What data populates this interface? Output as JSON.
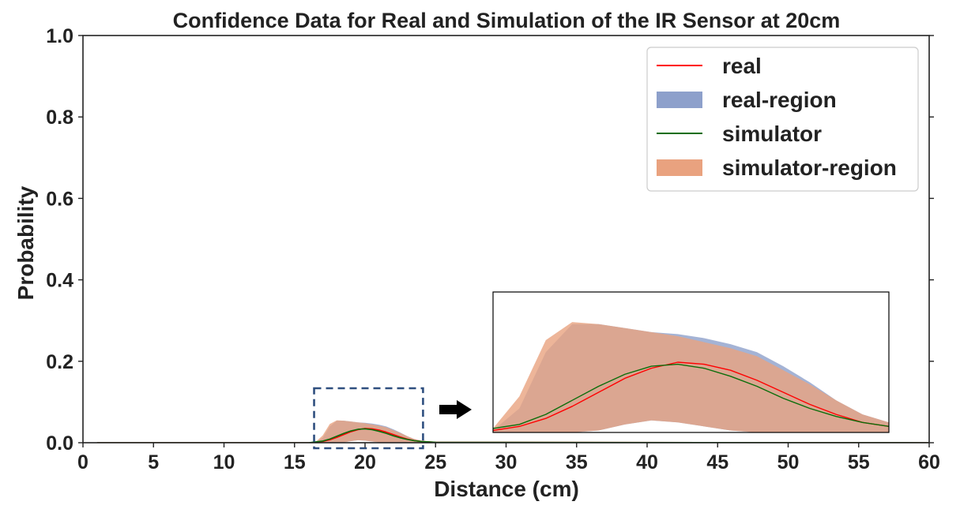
{
  "chart_data": {
    "type": "line",
    "title": "Confidence Data for Real and Simulation of the IR Sensor at 20cm",
    "xlabel": "Distance (cm)",
    "ylabel": "Probability",
    "xlim": [
      0,
      60
    ],
    "ylim": [
      0,
      1.0
    ],
    "x_ticks": [
      0,
      5,
      10,
      15,
      20,
      25,
      30,
      35,
      40,
      45,
      50,
      55,
      60
    ],
    "y_ticks": [
      0.0,
      0.2,
      0.4,
      0.6,
      0.8,
      1.0
    ],
    "x_tick_labels": [
      "0",
      "5",
      "10",
      "15",
      "20",
      "25",
      "30",
      "35",
      "40",
      "45",
      "50",
      "55",
      "60"
    ],
    "y_tick_labels": [
      "0.0",
      "0.2",
      "0.4",
      "0.6",
      "0.8",
      "1.0"
    ],
    "grid": false,
    "legend_position": "top-right",
    "legend": [
      {
        "label": "real",
        "kind": "line",
        "color": "#ff0000"
      },
      {
        "label": "real-region",
        "kind": "patch",
        "color": "#8da0cb"
      },
      {
        "label": "simulator",
        "kind": "line",
        "color": "#0a6e0a"
      },
      {
        "label": "simulator-region",
        "kind": "patch",
        "color": "#e9a27f"
      }
    ],
    "series": [
      {
        "name": "real",
        "kind": "line",
        "color": "#ff0000",
        "x": [
          1,
          16,
          16.5,
          17,
          17.5,
          18,
          18.5,
          19,
          19.5,
          20,
          20.5,
          21,
          21.5,
          22,
          22.5,
          23,
          23.5,
          24,
          25,
          60
        ],
        "y": [
          0,
          0,
          0.001,
          0.003,
          0.007,
          0.013,
          0.02,
          0.027,
          0.032,
          0.035,
          0.034,
          0.031,
          0.026,
          0.02,
          0.014,
          0.009,
          0.005,
          0.003,
          0.001,
          0
        ]
      },
      {
        "name": "simulator",
        "kind": "line",
        "color": "#0a6e0a",
        "x": [
          1,
          16,
          16.5,
          17,
          17.5,
          18,
          18.5,
          19,
          19.5,
          20,
          20.5,
          21,
          21.5,
          22,
          22.5,
          23,
          23.5,
          24,
          25,
          60
        ],
        "y": [
          0,
          0,
          0.002,
          0.004,
          0.009,
          0.016,
          0.023,
          0.029,
          0.033,
          0.034,
          0.032,
          0.028,
          0.023,
          0.017,
          0.012,
          0.008,
          0.005,
          0.003,
          0.001,
          0
        ]
      },
      {
        "name": "real-region",
        "kind": "band",
        "color": "#8da0cb",
        "x": [
          16.5,
          17,
          17.5,
          18,
          18.5,
          19,
          19.5,
          20,
          20.5,
          21,
          21.5,
          22,
          22.5,
          23,
          23.5,
          24,
          25
        ],
        "lower": [
          0,
          0,
          0,
          0,
          0.001,
          0.004,
          0.006,
          0.005,
          0.003,
          0.001,
          0,
          0,
          0,
          0,
          0,
          0,
          0
        ],
        "upper": [
          0.001,
          0.012,
          0.04,
          0.054,
          0.054,
          0.052,
          0.05,
          0.049,
          0.047,
          0.044,
          0.04,
          0.033,
          0.025,
          0.016,
          0.009,
          0.005,
          0.001
        ]
      },
      {
        "name": "simulator-region",
        "kind": "band",
        "color": "#e9a27f",
        "x": [
          16.5,
          17,
          17.5,
          18,
          18.5,
          19,
          19.5,
          20,
          20.5,
          21,
          21.5,
          22,
          22.5,
          23,
          23.5,
          24,
          25
        ],
        "lower": [
          0,
          0,
          0,
          0,
          0.001,
          0.004,
          0.006,
          0.005,
          0.003,
          0.001,
          0,
          0,
          0,
          0,
          0,
          0,
          0
        ],
        "upper": [
          0.002,
          0.018,
          0.046,
          0.055,
          0.054,
          0.052,
          0.05,
          0.048,
          0.045,
          0.042,
          0.038,
          0.031,
          0.024,
          0.016,
          0.009,
          0.005,
          0.001
        ]
      }
    ],
    "zoom_region": {
      "x": [
        16.5,
        24
      ],
      "y": [
        0,
        0.07
      ]
    },
    "inset": {
      "xlim": [
        16.5,
        24
      ],
      "ylim": [
        0,
        0.07
      ]
    }
  }
}
